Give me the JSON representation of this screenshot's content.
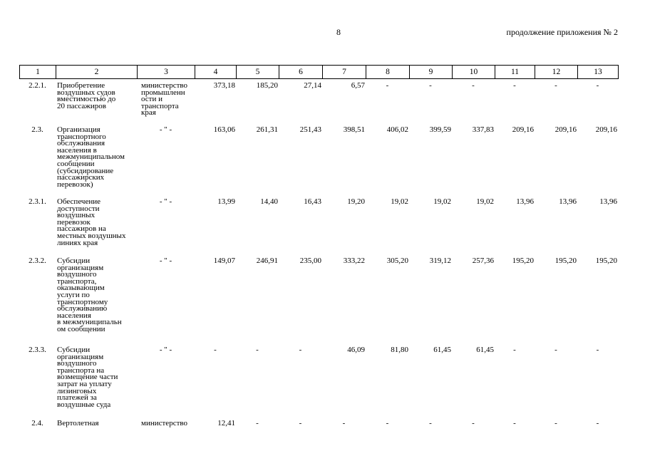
{
  "header": {
    "page_number": "8",
    "note": "продолжение приложения № 2"
  },
  "table": {
    "header_row": [
      "1",
      "2",
      "3",
      "4",
      "5",
      "6",
      "7",
      "8",
      "9",
      "10",
      "11",
      "12",
      "13"
    ],
    "rows": [
      [
        "2.2.1.",
        "Приобретение\nвоздушных судов\nвместимостью до\n20 пассажиров",
        "министерство\nпромышленн\nости и\nтранспорта\nкрая",
        "373,18",
        "185,20",
        "27,14",
        "6,57",
        "-",
        "-",
        "-",
        "-",
        "-",
        "-"
      ],
      [
        "2.3.",
        "Организация\nтранспортного\nобслуживания\nнаселения в\nмежмуниципальном\nсообщении\n(субсидирование\nпассажирских\nперевозок)",
        "- \" -",
        "163,06",
        "261,31",
        "251,43",
        "398,51",
        "406,02",
        "399,59",
        "337,83",
        "209,16",
        "209,16",
        "209,16"
      ],
      [
        "2.3.1.",
        "Обеспечение\nдоступности\nвоздушных\nперевозок\nпассажиров на\nместных воздушных\nлиниях края",
        "- \" -",
        "13,99",
        "14,40",
        "16,43",
        "19,20",
        "19,02",
        "19,02",
        "19,02",
        "13,96",
        "13,96",
        "13,96"
      ],
      [
        "2.3.2.",
        "Субсидии\nорганизациям\nвоздушного\nтранспорта,\nоказывающим\nуслуги по\nтранспортному\nобслуживанию\nнаселения\nв межмуниципальн\nом сообщении",
        "- \" -",
        "149,07",
        "246,91",
        "235,00",
        "333,22",
        "305,20",
        "319,12",
        "257,36",
        "195,20",
        "195,20",
        "195,20"
      ],
      [
        "2.3.3.",
        "Субсидии\nорганизациям\nвоздушного\nтранспорта на\nвозмещение части\nзатрат на уплату\nлизинговых\nплатежей за\nвоздушные суда",
        "- \" -",
        "-",
        "-",
        "-",
        "46,09",
        "81,80",
        "61,45",
        "61,45",
        "-",
        "-",
        "-"
      ],
      [
        "2.4.",
        "Вертолетная",
        "министерство",
        "12,41",
        "-",
        "-",
        "-",
        "-",
        "-",
        "-",
        "-",
        "-",
        "-"
      ]
    ]
  }
}
